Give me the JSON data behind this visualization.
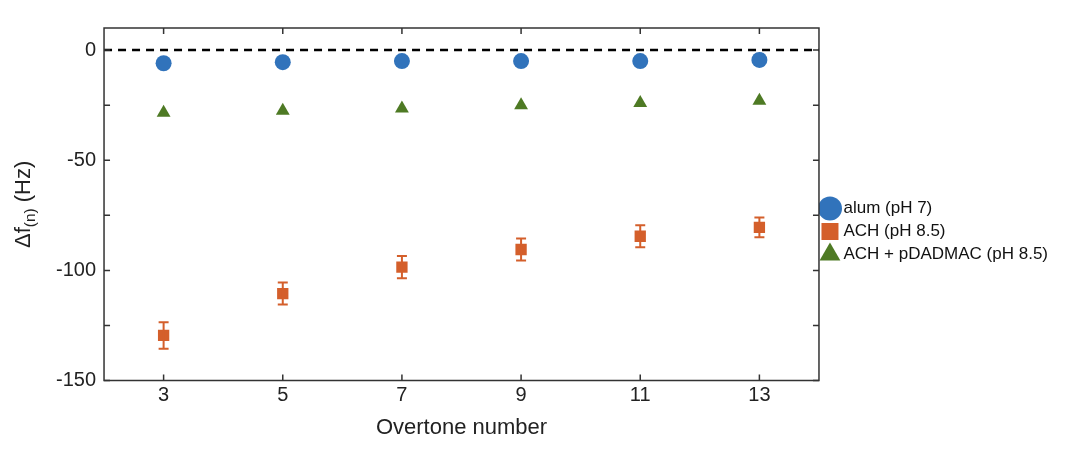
{
  "chart_data": {
    "type": "scatter",
    "xlabel": "Overtone number",
    "ylabel": "Δf$_{(n)}$ (Hz)",
    "x": [
      3,
      5,
      7,
      9,
      11,
      13
    ],
    "series": [
      {
        "name": "alum (pH 7)",
        "color": "#3173bb",
        "marker": "circle",
        "values": [
          -6,
          -5.5,
          -5,
          -5,
          -5,
          -4.5
        ]
      },
      {
        "name": "ACH (pH 8.5)",
        "color": "#d45f2b",
        "marker": "square",
        "values": [
          -129.5,
          -110.5,
          -98.5,
          -90.5,
          -84.5,
          -80.5
        ],
        "errors": [
          6,
          5,
          5,
          5,
          5,
          4.5
        ]
      },
      {
        "name": "ACH + pDADMAC (pH 8.5)",
        "color": "#4e7a24",
        "marker": "triangle",
        "values": [
          -28.5,
          -27.5,
          -26.5,
          -25,
          -24,
          -23
        ]
      }
    ],
    "xlim": [
      2,
      14
    ],
    "xticks": [
      3,
      5,
      7,
      9,
      11,
      13
    ],
    "ylim": [
      -150,
      10
    ],
    "yticks": [
      -150,
      {
        "value": -125,
        "label": null
      },
      -100,
      {
        "value": -75,
        "label": null
      },
      -50,
      {
        "value": -25,
        "label": null
      },
      0
    ],
    "ref_lines": [
      {
        "axis": "y",
        "value": 0,
        "color": "#000000",
        "line_style": "dashed"
      }
    ],
    "grid": false,
    "legend": "right"
  }
}
